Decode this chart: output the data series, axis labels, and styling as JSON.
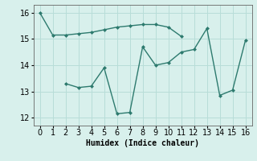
{
  "line1_x": [
    0,
    1,
    2,
    3,
    4,
    5,
    6,
    7,
    8,
    9,
    10,
    11
  ],
  "line1_y": [
    16.0,
    15.15,
    15.15,
    15.2,
    15.25,
    15.35,
    15.45,
    15.5,
    15.55,
    15.55,
    15.45,
    15.1
  ],
  "line2_x": [
    2,
    3,
    4,
    5,
    6,
    7,
    8,
    9,
    10,
    11,
    12,
    13,
    14,
    15,
    16
  ],
  "line2_y": [
    13.3,
    13.15,
    13.2,
    13.9,
    12.15,
    12.2,
    14.7,
    14.0,
    14.1,
    14.5,
    14.6,
    15.4,
    12.85,
    13.05,
    14.95
  ],
  "line_color": "#2d7a6e",
  "bg_color": "#d8f0ec",
  "grid_color": "#b8ddd8",
  "xlabel": "Humidex (Indice chaleur)",
  "xlim": [
    -0.5,
    16.5
  ],
  "ylim": [
    11.7,
    16.3
  ],
  "xticks": [
    0,
    1,
    2,
    3,
    4,
    5,
    6,
    7,
    8,
    9,
    10,
    11,
    12,
    13,
    14,
    15,
    16
  ],
  "yticks": [
    12,
    13,
    14,
    15,
    16
  ],
  "font_size": 7
}
